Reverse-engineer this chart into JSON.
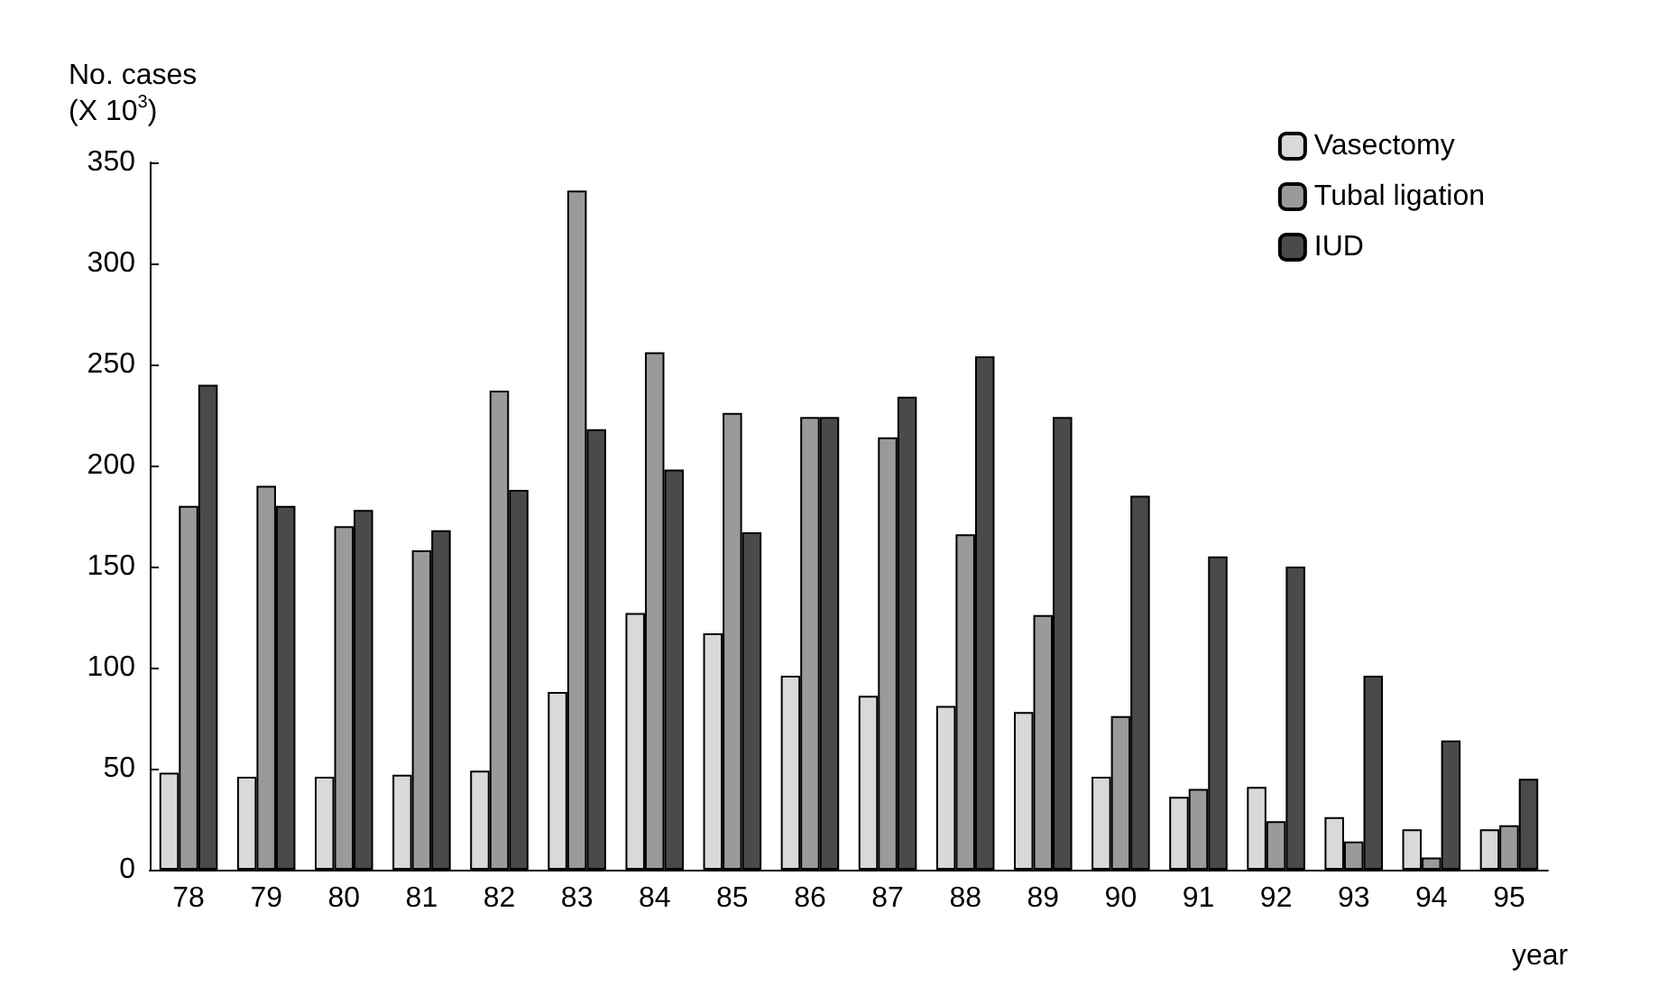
{
  "chart_data": {
    "type": "bar",
    "xlabel": "year",
    "ylabel": "No. cases\n(X 10$^{3}$)",
    "categories": [
      "78",
      "79",
      "80",
      "81",
      "82",
      "83",
      "84",
      "85",
      "86",
      "87",
      "88",
      "89",
      "90",
      "91",
      "92",
      "93",
      "94",
      "95"
    ],
    "series": [
      {
        "name": "Vasectomy",
        "color": "#d9d9d9",
        "values": [
          48,
          46,
          46,
          47,
          49,
          88,
          127,
          117,
          96,
          86,
          81,
          78,
          46,
          36,
          41,
          26,
          20,
          20
        ]
      },
      {
        "name": "Tubal ligation",
        "color": "#9a9a9a",
        "values": [
          180,
          190,
          170,
          158,
          237,
          336,
          256,
          226,
          224,
          214,
          166,
          126,
          76,
          40,
          24,
          14,
          6,
          22
        ]
      },
      {
        "name": "IUD",
        "color": "#4a4a4a",
        "values": [
          240,
          180,
          178,
          168,
          188,
          218,
          198,
          167,
          224,
          234,
          254,
          224,
          185,
          155,
          150,
          96,
          64,
          45
        ]
      }
    ],
    "ylim": [
      0,
      350
    ],
    "yticks": [
      0,
      50,
      100,
      150,
      200,
      250,
      300,
      350
    ],
    "grid": false,
    "legend": "top right"
  }
}
